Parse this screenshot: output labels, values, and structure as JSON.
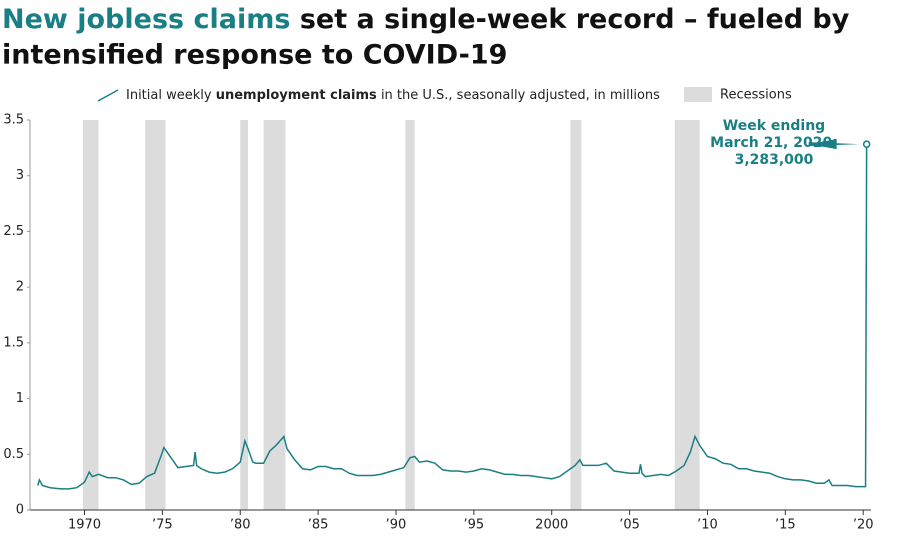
{
  "chart_data": {
    "type": "line",
    "title": {
      "highlight": "New jobless claims",
      "line1": "set a single-week record – fueled by",
      "line2": "intensified response to COVID-19"
    },
    "legend": {
      "parts": [
        "Initial weekly",
        "unemployment claims",
        "in the U.S., seasonally adjusted, in millions"
      ]
    },
    "recessions": {
      "label": "Recessions",
      "color": "#dcdcdc",
      "periods": [
        [
          1969.9,
          1970.9
        ],
        [
          1973.9,
          1975.2
        ],
        [
          1980.0,
          1980.5
        ],
        [
          1981.5,
          1982.9
        ],
        [
          1990.6,
          1991.2
        ],
        [
          2001.2,
          2001.9
        ],
        [
          2007.9,
          2009.5
        ]
      ]
    },
    "annotation": {
      "lines": [
        "Week ending",
        "March 21, 2020:",
        "3,283,000"
      ]
    },
    "x": [
      1967.0,
      1967.1,
      1967.3,
      1967.8,
      1968.5,
      1969.0,
      1969.5,
      1970.0,
      1970.3,
      1970.5,
      1970.9,
      1971.5,
      1972.0,
      1972.5,
      1973.0,
      1973.5,
      1974.0,
      1974.5,
      1974.9,
      1975.1,
      1975.4,
      1975.7,
      1976.0,
      1976.5,
      1977.0,
      1977.1,
      1977.2,
      1977.5,
      1978.0,
      1978.5,
      1979.0,
      1979.5,
      1980.0,
      1980.3,
      1980.5,
      1980.8,
      1981.0,
      1981.5,
      1981.9,
      1982.3,
      1982.8,
      1983.0,
      1983.5,
      1984.0,
      1984.5,
      1985.0,
      1985.5,
      1986.0,
      1986.5,
      1987.0,
      1987.5,
      1988.0,
      1988.5,
      1989.0,
      1989.5,
      1990.0,
      1990.5,
      1990.9,
      1991.2,
      1991.5,
      1992.0,
      1992.5,
      1993.0,
      1993.5,
      1994.0,
      1994.5,
      1995.0,
      1995.5,
      1996.0,
      1996.5,
      1997.0,
      1997.5,
      1998.0,
      1998.5,
      1999.0,
      1999.5,
      2000.0,
      2000.5,
      2001.0,
      2001.5,
      2001.8,
      2002.0,
      2002.5,
      2003.0,
      2003.5,
      2004.0,
      2004.5,
      2005.0,
      2005.6,
      2005.7,
      2005.8,
      2006.0,
      2006.5,
      2007.0,
      2007.5,
      2008.0,
      2008.5,
      2008.9,
      2009.2,
      2009.5,
      2010.0,
      2010.5,
      2011.0,
      2011.5,
      2012.0,
      2012.5,
      2013.0,
      2013.5,
      2014.0,
      2014.5,
      2015.0,
      2015.5,
      2016.0,
      2016.5,
      2017.0,
      2017.5,
      2017.8,
      2018.0,
      2018.5,
      2019.0,
      2019.5,
      2020.0,
      2020.15,
      2020.22
    ],
    "series": [
      {
        "color": "#1a7f84",
        "values": [
          0.22,
          0.27,
          0.22,
          0.2,
          0.19,
          0.19,
          0.2,
          0.25,
          0.34,
          0.3,
          0.32,
          0.29,
          0.29,
          0.27,
          0.23,
          0.24,
          0.3,
          0.33,
          0.48,
          0.56,
          0.5,
          0.44,
          0.38,
          0.39,
          0.4,
          0.52,
          0.4,
          0.37,
          0.34,
          0.33,
          0.34,
          0.37,
          0.43,
          0.62,
          0.55,
          0.43,
          0.42,
          0.42,
          0.53,
          0.58,
          0.66,
          0.55,
          0.45,
          0.37,
          0.36,
          0.39,
          0.39,
          0.37,
          0.37,
          0.33,
          0.31,
          0.31,
          0.31,
          0.32,
          0.34,
          0.36,
          0.38,
          0.47,
          0.48,
          0.43,
          0.44,
          0.42,
          0.36,
          0.35,
          0.35,
          0.34,
          0.35,
          0.37,
          0.36,
          0.34,
          0.32,
          0.32,
          0.31,
          0.31,
          0.3,
          0.29,
          0.28,
          0.3,
          0.35,
          0.4,
          0.45,
          0.4,
          0.4,
          0.4,
          0.42,
          0.35,
          0.34,
          0.33,
          0.33,
          0.41,
          0.33,
          0.3,
          0.31,
          0.32,
          0.31,
          0.35,
          0.4,
          0.52,
          0.66,
          0.58,
          0.48,
          0.46,
          0.42,
          0.41,
          0.37,
          0.37,
          0.35,
          0.34,
          0.33,
          0.3,
          0.28,
          0.27,
          0.27,
          0.26,
          0.24,
          0.24,
          0.27,
          0.22,
          0.22,
          0.22,
          0.21,
          0.21,
          0.21,
          3.283
        ]
      }
    ],
    "xlim": [
      1966.5,
      2020.5
    ],
    "xticks": [
      1970,
      {
        "value": 1975,
        "label": "’75"
      },
      {
        "value": 1980,
        "label": "’80"
      },
      {
        "value": 1985,
        "label": "’85"
      },
      {
        "value": 1990,
        "label": "’90"
      },
      {
        "value": 1995,
        "label": "’95"
      },
      2000,
      {
        "value": 2005,
        "label": "’05"
      },
      {
        "value": 2010,
        "label": "’10"
      },
      {
        "value": 2015,
        "label": "’15"
      },
      {
        "value": 2020,
        "label": "’20"
      }
    ],
    "ylim": [
      0,
      3.5
    ],
    "yticks": [
      0,
      0.5,
      1,
      1.5,
      2,
      2.5,
      3,
      3.5
    ]
  }
}
